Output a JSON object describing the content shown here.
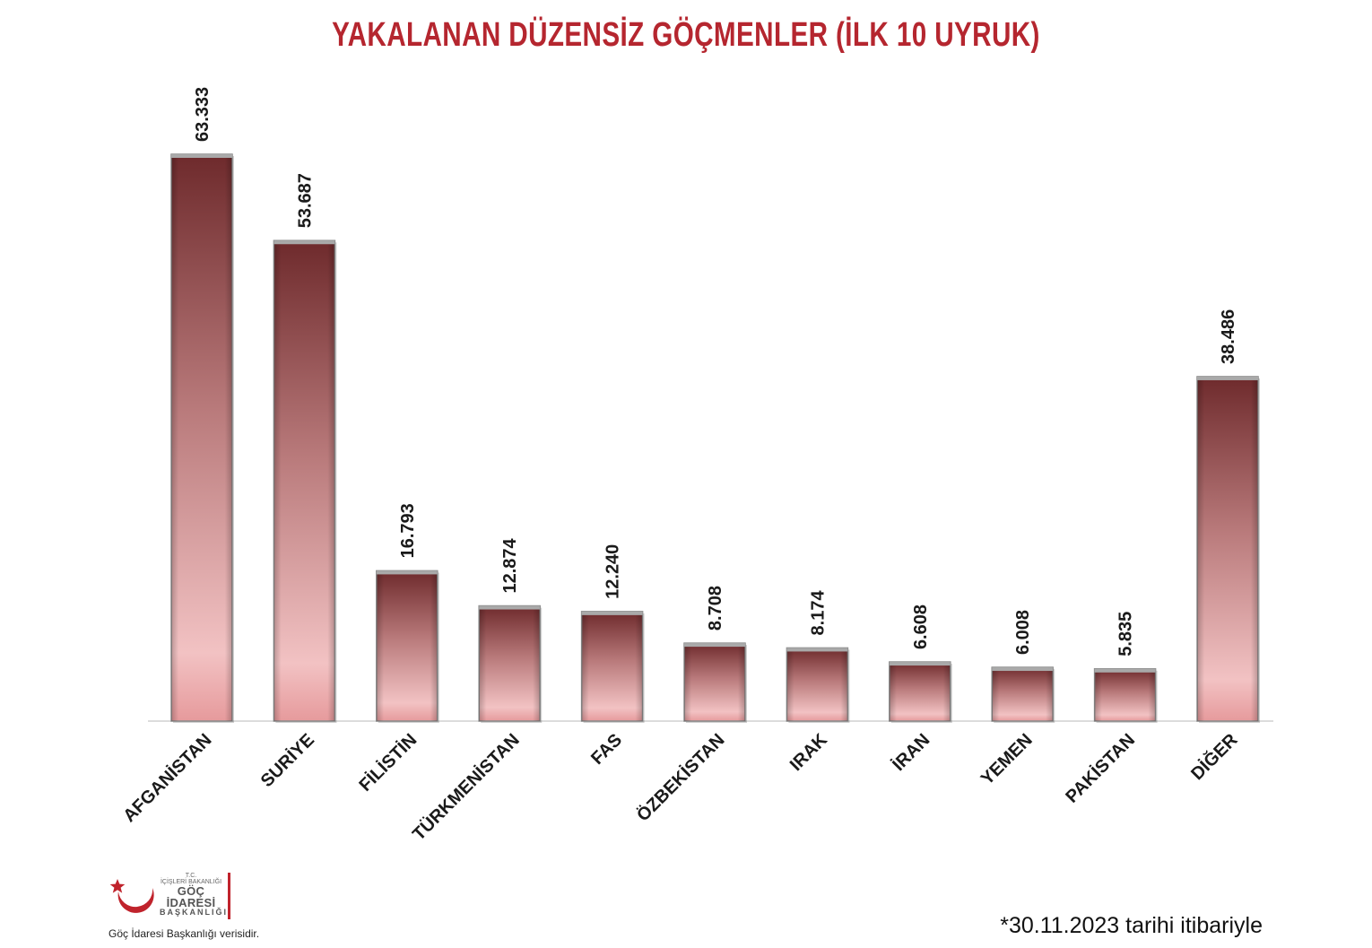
{
  "chart_data": {
    "type": "bar",
    "title": "YAKALANAN DÜZENSİZ GÖÇMENLER (İLK 10 UYRUK)",
    "categories": [
      "AFGANİSTAN",
      "SURİYE",
      "FİLİSTİN",
      "TÜRKMENİSTAN",
      "FAS",
      "ÖZBEKİSTAN",
      "IRAK",
      "İRAN",
      "YEMEN",
      "PAKİSTAN",
      "DİĞER"
    ],
    "values": [
      63333,
      53687,
      16793,
      12874,
      12240,
      8708,
      8174,
      6608,
      6008,
      5835,
      38486
    ],
    "value_labels": [
      "63.333",
      "53.687",
      "16.793",
      "12.874",
      "12.240",
      "8.708",
      "8.174",
      "6.608",
      "6.008",
      "5.835",
      "38.486"
    ],
    "ylim": [
      0,
      63333
    ],
    "grid": false,
    "legend": "none",
    "colors": {
      "bar_dark": "#6e2a2c",
      "bar_light": "#f2c2c3",
      "bar_bottom": "#e69a9c",
      "title": "#b5262f",
      "baseline": "#d0d0d0"
    }
  },
  "footer": {
    "logo": {
      "line1": "T.C.",
      "line2": "İÇİŞLERİ BAKANLIĞI",
      "line3": "GÖÇ İDARESİ",
      "line4": "BAŞKANLIĞI"
    },
    "source": "Göç İdaresi Başkanlığı verisidir.",
    "date_note": "*30.11.2023 tarihi itibariyle"
  }
}
